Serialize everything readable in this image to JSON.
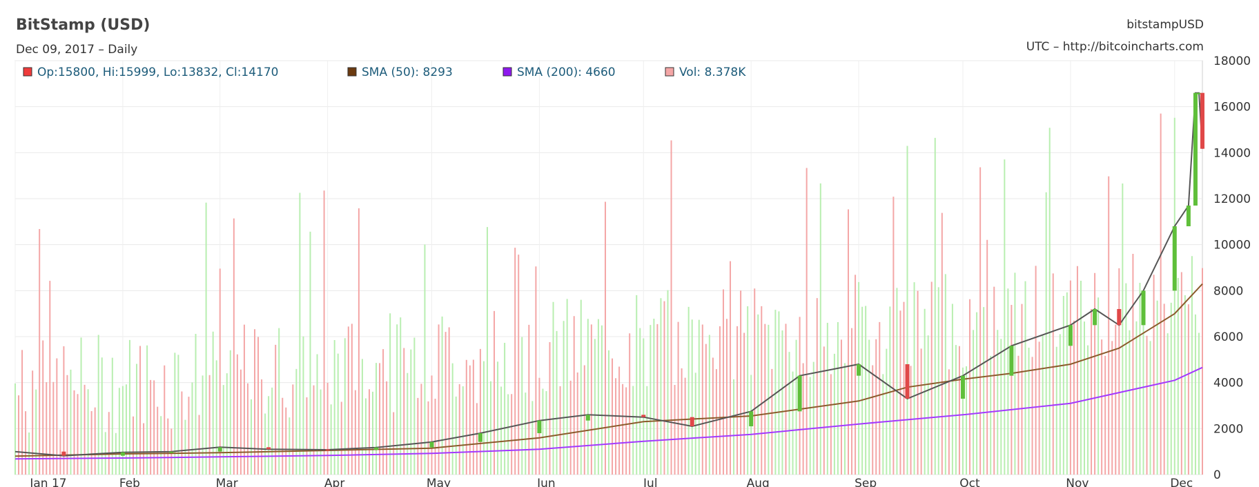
{
  "header": {
    "title": "BitStamp (USD)",
    "subtitle": "Dec 09, 2017 – Daily",
    "symbol": "bitstampUSD",
    "source": "UTC – http://bitcoincharts.com"
  },
  "legend": [
    {
      "label": "Op:15800, Hi:15999, Lo:13832, Cl:14170",
      "color": "#ef3b3b"
    },
    {
      "label": "SMA (50): 8293",
      "color": "#6b3a10"
    },
    {
      "label": "SMA (200): 4660",
      "color": "#8e18ee"
    },
    {
      "label": "Vol: 8.378K",
      "color": "#f4a6a6"
    }
  ],
  "chart_data": {
    "type": "line",
    "title": "BitStamp (USD)",
    "subtitle": "Dec 09, 2017 – Daily",
    "x_labels": [
      "Jan 17",
      "Feb",
      "Mar",
      "Apr",
      "May",
      "Jun",
      "Jul",
      "Aug",
      "Sep",
      "Oct",
      "Nov",
      "Dec"
    ],
    "ylim": [
      0,
      18000
    ],
    "y_ticks": [
      0,
      2000,
      4000,
      6000,
      8000,
      10000,
      12000,
      14000,
      16000,
      18000
    ],
    "grid": true,
    "legend_position": "top-left",
    "colors": {
      "up": "#5fbf3a",
      "down": "#e04848",
      "sma50": "#8b5a2b",
      "sma200": "#a238ff",
      "vol_up": "#b8eeb0",
      "vol_down": "#f4a6a6"
    },
    "series": [
      {
        "name": "Close",
        "x": [
          "Jan 1",
          "Jan 15",
          "Feb 1",
          "Feb 15",
          "Mar 1",
          "Mar 15",
          "Apr 1",
          "Apr 15",
          "May 1",
          "May 15",
          "Jun 1",
          "Jun 15",
          "Jul 1",
          "Jul 15",
          "Aug 1",
          "Aug 15",
          "Sep 1",
          "Sep 15",
          "Oct 1",
          "Oct 15",
          "Nov 1",
          "Nov 8",
          "Nov 15",
          "Nov 22",
          "Dec 1",
          "Dec 5",
          "Dec 7",
          "Dec 8",
          "Dec 9"
        ],
        "values": [
          1000,
          820,
          970,
          1000,
          1190,
          1100,
          1080,
          1180,
          1420,
          1800,
          2350,
          2600,
          2500,
          2100,
          2750,
          4300,
          4800,
          3300,
          4300,
          5600,
          6500,
          7200,
          6500,
          8000,
          10800,
          11700,
          16600,
          16600,
          14170
        ]
      },
      {
        "name": "SMA (50)",
        "x": [
          "Jan 1",
          "Feb 1",
          "Mar 1",
          "Apr 1",
          "May 1",
          "Jun 1",
          "Jul 1",
          "Aug 1",
          "Sep 1",
          "Sep 15",
          "Oct 1",
          "Oct 15",
          "Nov 1",
          "Nov 15",
          "Dec 1",
          "Dec 9"
        ],
        "values": [
          800,
          900,
          950,
          1050,
          1150,
          1600,
          2300,
          2550,
          3200,
          3800,
          4150,
          4400,
          4800,
          5500,
          7000,
          8293
        ]
      },
      {
        "name": "SMA (200)",
        "x": [
          "Jan 1",
          "Feb 1",
          "Mar 1",
          "Apr 1",
          "May 1",
          "Jun 1",
          "Jul 1",
          "Aug 1",
          "Sep 1",
          "Oct 1",
          "Nov 1",
          "Dec 1",
          "Dec 9"
        ],
        "values": [
          680,
          720,
          770,
          830,
          920,
          1100,
          1450,
          1750,
          2200,
          2600,
          3100,
          4100,
          4660
        ]
      },
      {
        "name": "Vol",
        "values": [
          8378
        ]
      }
    ]
  }
}
